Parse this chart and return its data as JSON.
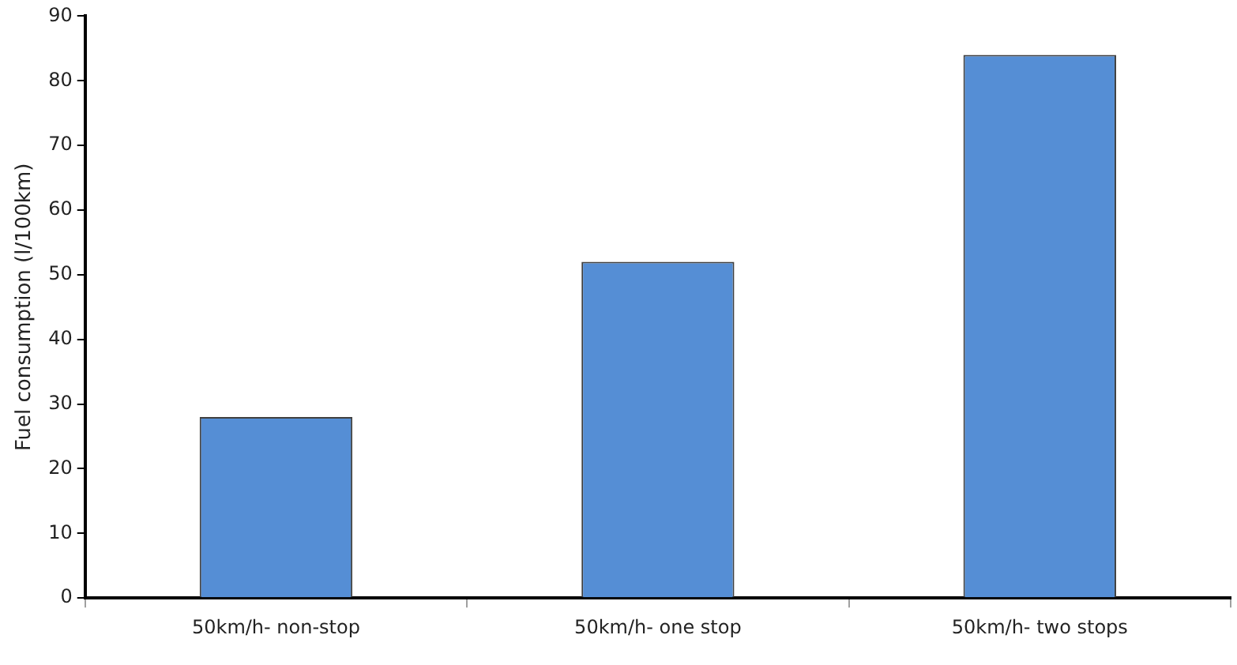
{
  "chart_data": {
    "type": "bar",
    "ylabel": "Fuel consumption (l/100km)",
    "categories": [
      "50km/h- non-stop",
      "50km/h- one stop",
      "50km/h- two stops"
    ],
    "values": [
      28,
      52,
      84
    ],
    "color": "#558ed5",
    "ylim": [
      0,
      90
    ],
    "yticks": [
      0,
      10,
      20,
      30,
      40,
      50,
      60,
      70,
      80,
      90
    ],
    "grid": false,
    "legend": false
  }
}
